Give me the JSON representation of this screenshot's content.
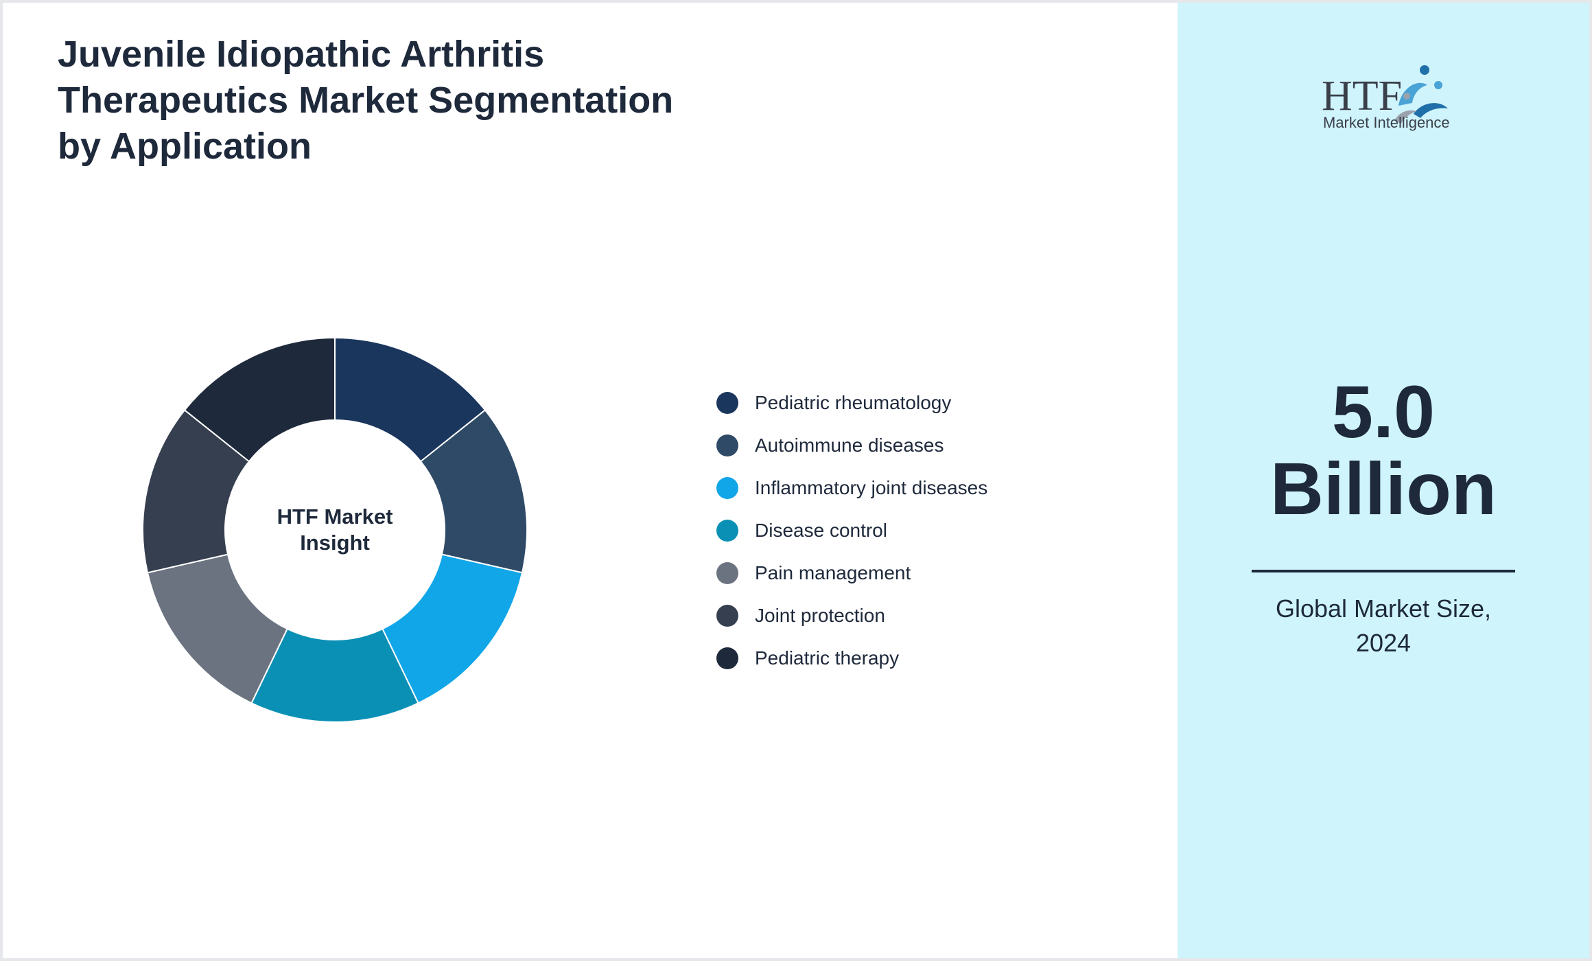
{
  "title_lines": [
    "Juvenile Idiopathic Arthritis",
    "Therapeutics Market Segmentation",
    "by Application"
  ],
  "chart_data": {
    "type": "pie",
    "title": "Juvenile Idiopathic Arthritis Therapeutics Market Segmentation by Application",
    "center_label_lines": [
      "HTF Market",
      "Insight"
    ],
    "legend_position": "right",
    "slices": [
      {
        "label": "Pediatric rheumatology",
        "value": 14.29,
        "color": "#1b365d"
      },
      {
        "label": "Autoimmune diseases",
        "value": 14.29,
        "color": "#2e4a66"
      },
      {
        "label": "Inflammatory joint diseases",
        "value": 14.29,
        "color": "#11a6e8"
      },
      {
        "label": "Disease control",
        "value": 14.29,
        "color": "#0b90b5"
      },
      {
        "label": "Pain management",
        "value": 14.29,
        "color": "#6c7380"
      },
      {
        "label": "Joint protection",
        "value": 14.29,
        "color": "#363f4f"
      },
      {
        "label": "Pediatric therapy",
        "value": 14.29,
        "color": "#1e293b"
      }
    ]
  },
  "logo": {
    "brand": "HTF",
    "tagline": "Market Intelligence"
  },
  "market_size": {
    "value_lines": [
      "5.0",
      "Billion"
    ],
    "caption_lines": [
      "Global Market Size,",
      "2024"
    ]
  },
  "colors": {
    "side_panel": "#cff4fc",
    "text": "#1e293b"
  }
}
